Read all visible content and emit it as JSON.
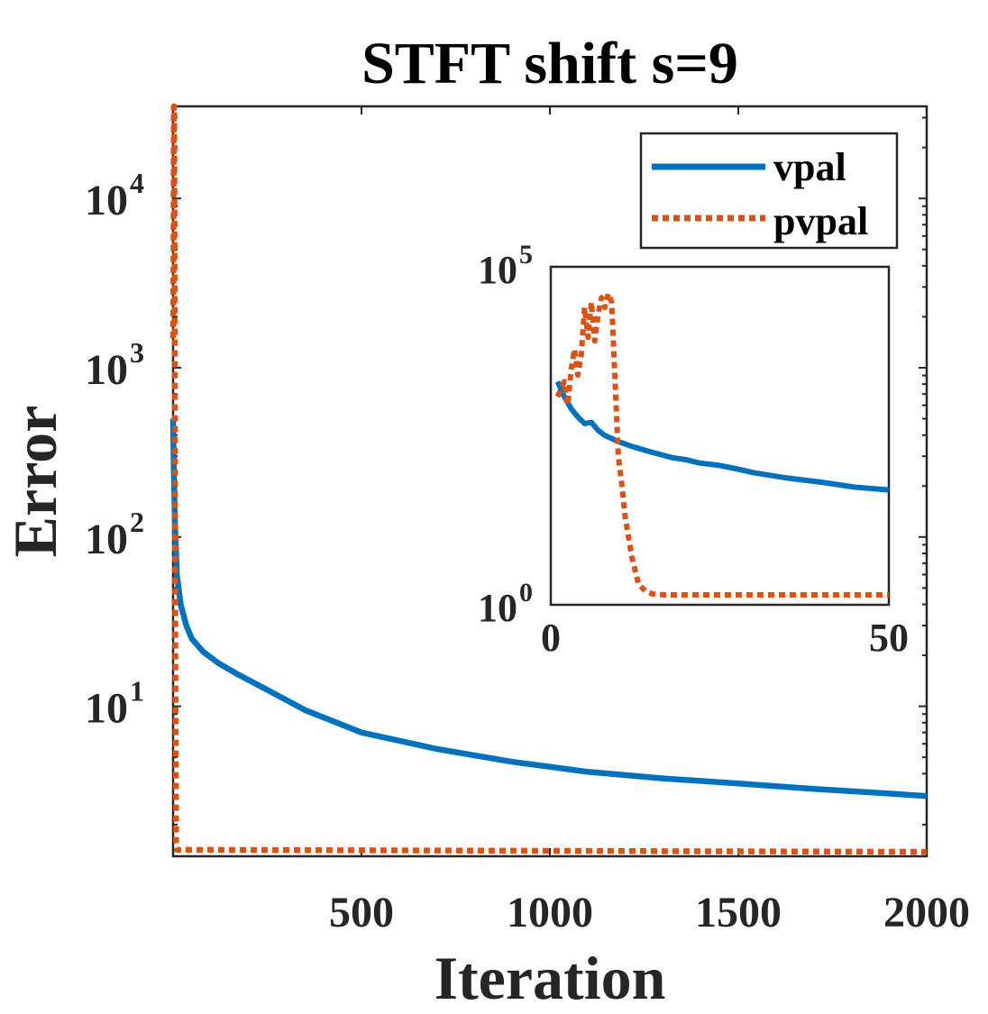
{
  "chart_data": [
    {
      "type": "line",
      "title": "STFT shift s=9",
      "xlabel": "Iteration",
      "ylabel": "Error",
      "xlim": [
        0,
        2000
      ],
      "ylim": [
        1.3,
        35000
      ],
      "yscale": "log",
      "xticks": [
        500,
        1000,
        1500,
        2000
      ],
      "xtick_labels": [
        "500",
        "1000",
        "1500",
        "2000"
      ],
      "yticks": [
        10,
        100,
        1000,
        10000
      ],
      "ytick_labels": [
        {
          "base": "10",
          "exp": "1"
        },
        {
          "base": "10",
          "exp": "2"
        },
        {
          "base": "10",
          "exp": "3"
        },
        {
          "base": "10",
          "exp": "4"
        }
      ],
      "grid": false,
      "legend_position": "top-right",
      "legend": [
        "vpal",
        "pvpal"
      ],
      "series": [
        {
          "name": "vpal",
          "color": "#0072BD",
          "style": "solid",
          "x": [
            0,
            2,
            5,
            10,
            20,
            35,
            50,
            80,
            120,
            170,
            250,
            350,
            500,
            700,
            900,
            1100,
            1300,
            1500,
            1700,
            1900,
            2000
          ],
          "y": [
            500,
            250,
            120,
            60,
            40,
            30,
            25,
            21,
            18,
            15.5,
            12.5,
            9.5,
            7,
            5.6,
            4.7,
            4.1,
            3.75,
            3.5,
            3.25,
            3.05,
            2.95
          ]
        },
        {
          "name": "pvpal",
          "color": "#D95319",
          "style": "dotted",
          "x": [
            0,
            1,
            2,
            3,
            4,
            5,
            6,
            8,
            10,
            1000,
            2000
          ],
          "y": [
            1500,
            3000,
            35000,
            35000,
            5000,
            200,
            20,
            1.6,
            1.42,
            1.4,
            1.38
          ]
        }
      ]
    },
    {
      "type": "line",
      "inset": true,
      "xlim": [
        0,
        50
      ],
      "ylim": [
        1,
        100000
      ],
      "yscale": "log",
      "xtick_labels": [
        "0",
        "50"
      ],
      "ytick_labels": [
        {
          "base": "10",
          "exp": "0"
        },
        {
          "base": "10",
          "exp": "5"
        }
      ],
      "series": [
        {
          "name": "vpal",
          "color": "#0072BD",
          "style": "solid",
          "x": [
            1,
            2,
            3,
            4,
            5,
            6,
            7,
            8,
            10,
            12,
            15,
            18,
            20,
            22,
            25,
            28,
            30,
            35,
            40,
            45,
            50
          ],
          "y": [
            2000,
            1200,
            800,
            600,
            480,
            500,
            380,
            320,
            260,
            220,
            180,
            150,
            140,
            125,
            115,
            100,
            90,
            75,
            65,
            55,
            50
          ]
        },
        {
          "name": "pvpal",
          "color": "#D95319",
          "style": "dotted",
          "x": [
            1,
            2,
            2.5,
            3,
            3.5,
            4,
            4.5,
            5,
            5.5,
            6,
            6.5,
            7,
            7.5,
            8,
            8.5,
            9,
            10,
            10.5,
            11,
            12,
            13,
            14,
            15,
            16,
            17,
            18,
            20,
            25,
            30,
            40,
            50
          ],
          "y": [
            1200,
            2000,
            900,
            3000,
            6000,
            2500,
            5000,
            25000,
            9000,
            30000,
            8000,
            20000,
            35000,
            25000,
            40000,
            30000,
            150,
            60,
            20,
            5,
            2,
            1.6,
            1.45,
            1.42,
            1.4,
            1.4,
            1.4,
            1.4,
            1.4,
            1.4,
            1.4
          ]
        }
      ]
    }
  ]
}
